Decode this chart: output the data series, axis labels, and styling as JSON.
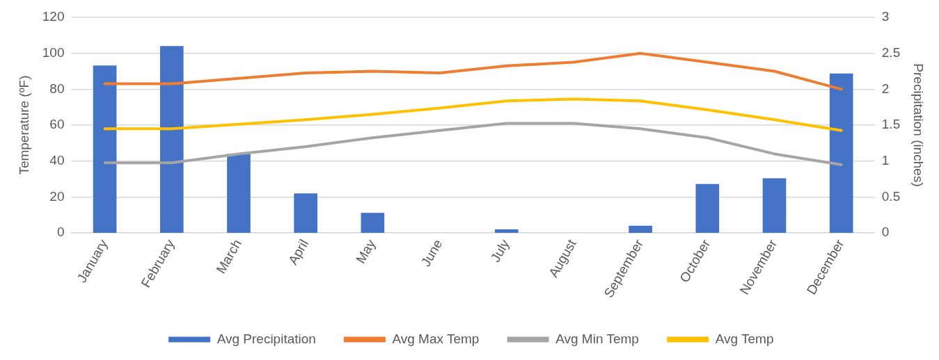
{
  "chart_data": {
    "type": "bar",
    "ylabel": "Temperature (ºF)",
    "y2label": "Precipitation (inches)",
    "categories": [
      "January",
      "February",
      "March",
      "April",
      "May",
      "June",
      "July",
      "August",
      "September",
      "October",
      "November",
      "December"
    ],
    "series": [
      {
        "name": "Avg Precipitation",
        "axis": "y2",
        "color": "#4472c4",
        "values": [
          2.33,
          2.6,
          1.1,
          0.55,
          0.28,
          0,
          0.05,
          0,
          0.1,
          0.68,
          0.76,
          2.22
        ]
      },
      {
        "name": "Avg Max Temp",
        "type": "line",
        "color": "#ed7d31",
        "values": [
          83,
          83,
          86,
          89,
          90,
          89,
          93,
          95,
          100,
          95,
          90,
          80
        ]
      },
      {
        "name": "Avg Min Temp",
        "type": "line",
        "color": "#a5a5a5",
        "values": [
          39,
          39,
          44,
          48,
          53,
          57,
          61,
          61,
          58,
          53,
          44,
          38
        ]
      },
      {
        "name": "Avg Temp",
        "type": "line",
        "color": "#ffc000",
        "values": [
          58,
          58,
          60.5,
          63,
          66,
          69.5,
          73.5,
          74.5,
          73.5,
          68.5,
          63,
          57
        ]
      }
    ],
    "ylim": [
      0,
      120
    ],
    "yticks": [
      0,
      20,
      40,
      60,
      80,
      100,
      120
    ],
    "y2lim": [
      0,
      3
    ],
    "y2ticks": [
      0,
      0.5,
      1,
      1.5,
      2,
      2.5,
      3
    ],
    "grid": "y",
    "legend": "bottom",
    "marker": "none",
    "line_style": "solid"
  }
}
